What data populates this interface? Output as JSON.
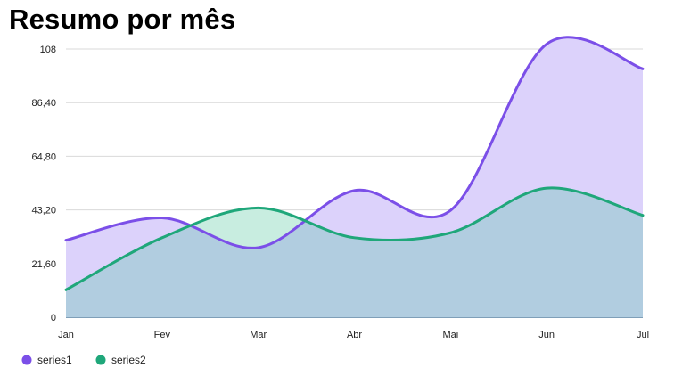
{
  "chart_data": {
    "type": "area",
    "title": "Resumo por mês",
    "categories": [
      "Jan",
      "Fev",
      "Mar",
      "Abr",
      "Mai",
      "Jun",
      "Jul"
    ],
    "series": [
      {
        "name": "series1",
        "values": [
          31,
          40,
          28,
          51,
          43,
          110,
          100
        ],
        "color": "#7b4fe8",
        "fill": "#dcd2fb"
      },
      {
        "name": "series2",
        "values": [
          11,
          32,
          44,
          32,
          34,
          52,
          41
        ],
        "color": "#1fa77a",
        "fill": "#c8ede0"
      }
    ],
    "overlap_fill": "#b1cde0",
    "y_ticks": [
      "0",
      "21,60",
      "43,20",
      "64,80",
      "86,40",
      "108"
    ],
    "ylim": [
      0,
      108
    ],
    "grid": true,
    "legend_position": "bottom-left"
  }
}
